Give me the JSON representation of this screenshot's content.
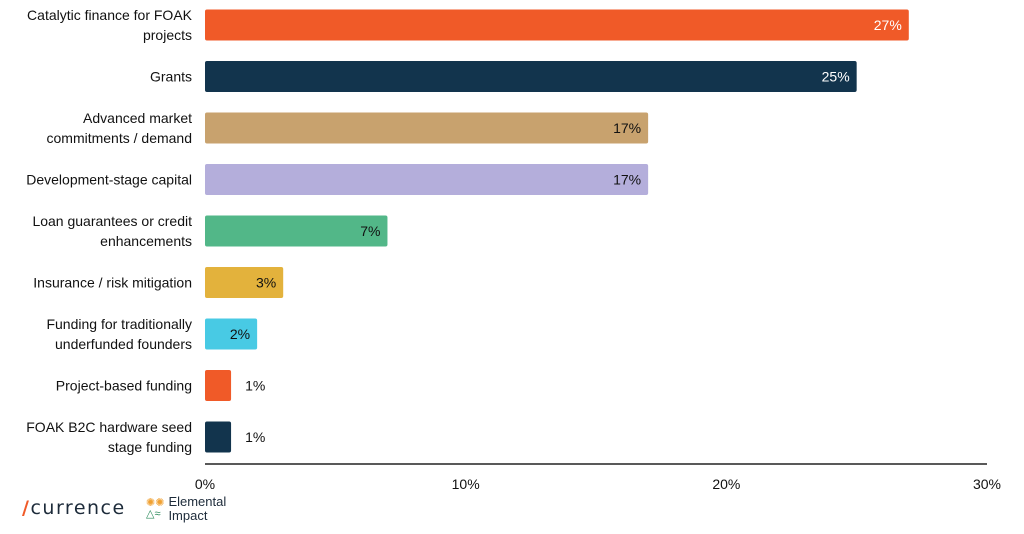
{
  "chart_data": {
    "type": "bar",
    "orientation": "horizontal",
    "categories": [
      [
        "Catalytic finance for FOAK",
        "projects"
      ],
      [
        "Grants"
      ],
      [
        "Advanced market",
        "commitments / demand"
      ],
      [
        "Development-stage capital"
      ],
      [
        "Loan guarantees or credit",
        "enhancements"
      ],
      [
        "Insurance / risk mitigation"
      ],
      [
        "Funding for traditionally",
        "underfunded founders"
      ],
      [
        "Project-based funding"
      ],
      [
        "FOAK B2C hardware seed",
        "stage funding"
      ]
    ],
    "values": [
      27,
      25,
      17,
      17,
      7,
      3,
      2,
      1,
      1
    ],
    "value_labels": [
      "27%",
      "25%",
      "17%",
      "17%",
      "7%",
      "3%",
      "2%",
      "1%",
      "1%"
    ],
    "colors": [
      "#f05a28",
      "#12344d",
      "#c8a26e",
      "#b4aedb",
      "#52b788",
      "#e3b23c",
      "#48cae4",
      "#f05a28",
      "#12344d"
    ],
    "label_colors": [
      "#ffffff",
      "#ffffff",
      "#111111",
      "#111111",
      "#111111",
      "#111111",
      "#111111",
      "#111111",
      "#111111"
    ],
    "xlim": [
      0,
      30
    ],
    "xticks": [
      0,
      10,
      20,
      30
    ],
    "xtick_labels": [
      "0%",
      "10%",
      "20%",
      "30%"
    ],
    "grid": false
  },
  "logos": {
    "currence": "currence",
    "currence_mark": "⚡",
    "elemental_line1": "Elemental",
    "elemental_line2": "Impact"
  }
}
